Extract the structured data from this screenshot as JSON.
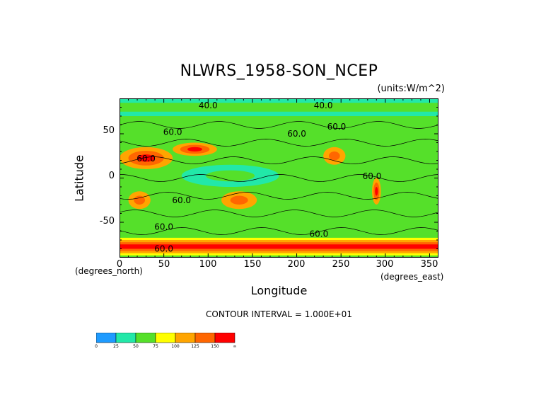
{
  "chart_data": {
    "type": "heatmap",
    "title": "NLWRS_1958-SON_NCEP",
    "units": "(units:W/m^2)",
    "xlabel": "Longitude",
    "ylabel": "Latitude",
    "x_unit_label_left": "(degrees_north)",
    "x_unit_label_right": "(degrees_east)",
    "xlim": [
      0,
      360
    ],
    "ylim": [
      -90,
      90
    ],
    "x_ticks": [
      "0",
      "50",
      "100",
      "150",
      "200",
      "250",
      "300",
      "350"
    ],
    "y_ticks": [
      "50",
      "0",
      "-50"
    ],
    "contour_text": "CONTOUR INTERVAL = 1.000E+01",
    "contour_labels": [
      "40.0",
      "40.0",
      "60.0",
      "60.0",
      "60.0",
      "60.0",
      "60.0",
      "60.0",
      "60.0",
      "60.0",
      "60.0"
    ],
    "colorbar": {
      "ticks": [
        "0",
        "25",
        "50",
        "75",
        "100",
        "125",
        "150",
        "∞"
      ],
      "colors": [
        "#1e9bff",
        "#22e8a8",
        "#55e02a",
        "#ffff00",
        "#ffa500",
        "#ff6600",
        "#ff0000"
      ]
    },
    "regions": [
      {
        "name": "global-background",
        "value_range": [
          50,
          75
        ]
      },
      {
        "name": "north-africa-arabia",
        "lon": [
          0,
          60
        ],
        "lat": [
          10,
          35
        ],
        "value_range": [
          100,
          150
        ]
      },
      {
        "name": "sahara-east",
        "lon": [
          60,
          110
        ],
        "lat": [
          25,
          40
        ],
        "value_range": [
          100,
          150
        ]
      },
      {
        "name": "australia",
        "lon": [
          115,
          155
        ],
        "lat": [
          -35,
          -15
        ],
        "value_range": [
          100,
          125
        ]
      },
      {
        "name": "mexico-desert",
        "lon": [
          230,
          255
        ],
        "lat": [
          15,
          35
        ],
        "value_range": [
          100,
          125
        ]
      },
      {
        "name": "southern-africa",
        "lon": [
          10,
          35
        ],
        "lat": [
          -35,
          -15
        ],
        "value_range": [
          100,
          125
        ]
      },
      {
        "name": "andes",
        "lon": [
          285,
          295
        ],
        "lat": [
          -30,
          0
        ],
        "value_range": [
          100,
          150
        ]
      },
      {
        "name": "antarctica-band",
        "lon": [
          0,
          360
        ],
        "lat": [
          -90,
          -65
        ],
        "value_range": [
          50,
          150
        ]
      },
      {
        "name": "tropical-warm-pool",
        "lon": [
          70,
          180
        ],
        "lat": [
          -10,
          15
        ],
        "value_range": [
          25,
          50
        ]
      },
      {
        "name": "high-arctic",
        "lon": [
          0,
          360
        ],
        "lat": [
          70,
          90
        ],
        "value_range": [
          25,
          50
        ]
      }
    ]
  }
}
